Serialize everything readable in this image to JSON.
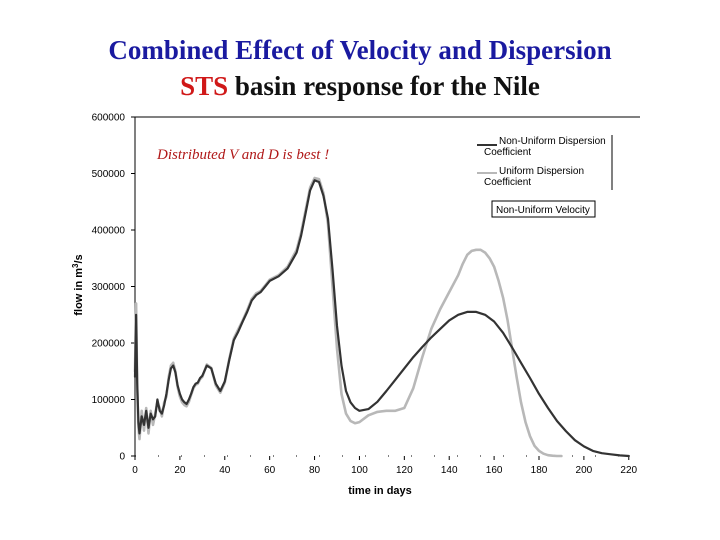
{
  "slide": {
    "title_line1": "Combined Effect of Velocity and Dispersion",
    "title_line2_highlight": "STS",
    "title_line2_rest": " basin response for the Nile"
  },
  "chart_data": {
    "type": "line",
    "xlabel": "time in days",
    "ylabel_main": "flow in m",
    "ylabel_sup": "3",
    "ylabel_end": "/s",
    "xlim": [
      0,
      225
    ],
    "ylim": [
      0,
      600000
    ],
    "xticks": [
      0,
      20,
      40,
      60,
      80,
      100,
      120,
      140,
      160,
      180,
      200,
      220
    ],
    "yticks": [
      0,
      100000,
      200000,
      300000,
      400000,
      500000,
      600000
    ],
    "grid": false,
    "legend_position": "top-right",
    "annotation": "Distributed V and D is best !",
    "legend_box_label": "Non-Uniform Velocity",
    "series": [
      {
        "name": "Non-Uniform Dispersion Coefficient",
        "color": "#333333",
        "x": [
          0,
          0.5,
          1,
          1.5,
          2,
          3,
          4,
          5,
          6,
          7,
          8,
          9,
          10,
          11,
          12,
          13,
          14,
          15,
          16,
          17,
          18,
          19,
          20,
          21,
          22,
          23,
          24,
          25,
          26,
          27,
          28,
          29,
          30,
          32,
          34,
          36,
          38,
          40,
          42,
          44,
          46,
          48,
          50,
          52,
          54,
          56,
          58,
          60,
          64,
          68,
          72,
          74,
          76,
          78,
          80,
          82,
          84,
          86,
          88,
          90,
          92,
          94,
          96,
          98,
          100,
          104,
          108,
          112,
          116,
          120,
          124,
          128,
          132,
          136,
          140,
          144,
          148,
          152,
          156,
          160,
          164,
          168,
          172,
          176,
          180,
          184,
          188,
          192,
          196,
          200,
          204,
          208,
          212,
          216,
          220
        ],
        "y": [
          140000,
          250000,
          130000,
          60000,
          40000,
          70000,
          55000,
          80000,
          50000,
          75000,
          65000,
          70000,
          100000,
          80000,
          75000,
          90000,
          110000,
          135000,
          155000,
          160000,
          148000,
          125000,
          110000,
          100000,
          95000,
          92000,
          100000,
          110000,
          122000,
          128000,
          130000,
          138000,
          142000,
          160000,
          155000,
          128000,
          115000,
          132000,
          170000,
          205000,
          220000,
          238000,
          255000,
          275000,
          285000,
          290000,
          300000,
          310000,
          318000,
          332000,
          360000,
          390000,
          430000,
          470000,
          488000,
          485000,
          460000,
          420000,
          330000,
          230000,
          160000,
          115000,
          95000,
          85000,
          80000,
          83000,
          96000,
          115000,
          135000,
          155000,
          175000,
          193000,
          210000,
          225000,
          240000,
          250000,
          255000,
          255000,
          250000,
          238000,
          218000,
          192000,
          165000,
          138000,
          110000,
          85000,
          62000,
          44000,
          28000,
          17000,
          9000,
          5000,
          3000,
          1000,
          0
        ]
      },
      {
        "name": "Uniform Dispersion Coefficient",
        "color": "#b8b8b8",
        "x": [
          0,
          0.5,
          1,
          1.5,
          2,
          3,
          4,
          5,
          6,
          7,
          8,
          9,
          10,
          11,
          12,
          13,
          14,
          15,
          16,
          17,
          18,
          19,
          20,
          21,
          22,
          23,
          24,
          25,
          26,
          27,
          28,
          29,
          30,
          32,
          34,
          36,
          38,
          40,
          42,
          44,
          46,
          48,
          50,
          52,
          54,
          56,
          58,
          60,
          64,
          68,
          72,
          74,
          76,
          78,
          80,
          82,
          84,
          86,
          88,
          90,
          92,
          94,
          96,
          98,
          100,
          104,
          108,
          112,
          116,
          120,
          124,
          128,
          132,
          136,
          140,
          144,
          146,
          148,
          150,
          152,
          154,
          156,
          158,
          160,
          162,
          164,
          166,
          168,
          170,
          172,
          174,
          176,
          178,
          180,
          182,
          184,
          186,
          188,
          190
        ],
        "y": [
          150000,
          270000,
          120000,
          50000,
          30000,
          80000,
          45000,
          85000,
          40000,
          80000,
          55000,
          75000,
          95000,
          85000,
          70000,
          95000,
          105000,
          140000,
          160000,
          165000,
          150000,
          122000,
          105000,
          95000,
          90000,
          88000,
          96000,
          108000,
          120000,
          126000,
          128000,
          136000,
          140000,
          162000,
          156000,
          125000,
          112000,
          130000,
          172000,
          208000,
          224000,
          240000,
          258000,
          278000,
          288000,
          292000,
          302000,
          312000,
          320000,
          335000,
          365000,
          395000,
          435000,
          475000,
          492000,
          490000,
          465000,
          410000,
          300000,
          190000,
          110000,
          75000,
          62000,
          58000,
          60000,
          72000,
          78000,
          80000,
          80000,
          85000,
          120000,
          175000,
          225000,
          260000,
          290000,
          320000,
          340000,
          356000,
          363000,
          365000,
          365000,
          360000,
          350000,
          335000,
          310000,
          280000,
          240000,
          190000,
          140000,
          95000,
          60000,
          35000,
          18000,
          9000,
          4000,
          1500,
          500,
          0,
          0
        ]
      }
    ]
  }
}
